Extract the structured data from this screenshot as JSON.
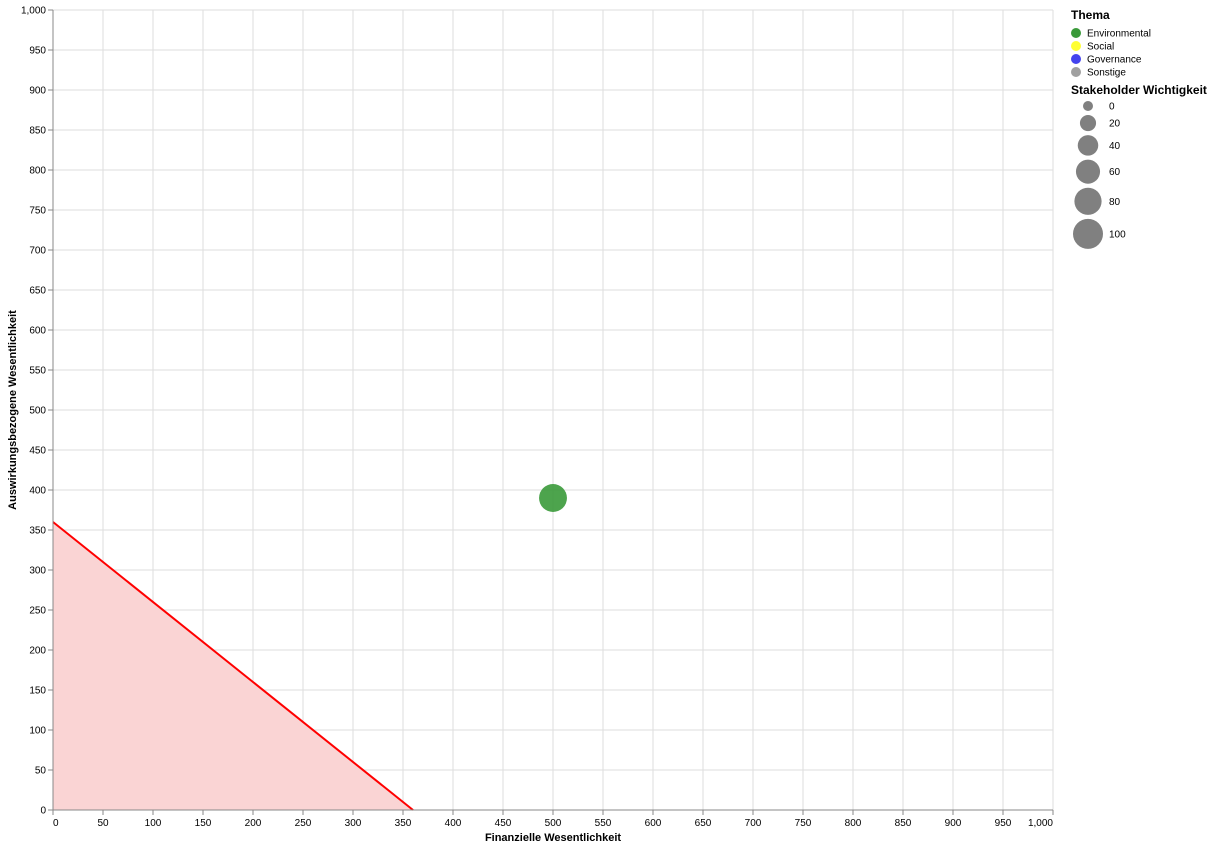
{
  "chart_data": {
    "type": "scatter",
    "xlabel": "Finanzielle Wesentlichkeit",
    "ylabel": "Auswirkungsbezogene Wesentlichkeit",
    "xlim": [
      0,
      1000
    ],
    "ylim": [
      0,
      1000
    ],
    "tick_step": 50,
    "x_tick_labels": [
      "0",
      "50",
      "100",
      "150",
      "200",
      "250",
      "300",
      "350",
      "400",
      "450",
      "500",
      "550",
      "600",
      "650",
      "700",
      "750",
      "800",
      "850",
      "900",
      "950",
      "1,000"
    ],
    "y_tick_labels": [
      "0",
      "50",
      "100",
      "150",
      "200",
      "250",
      "300",
      "350",
      "400",
      "450",
      "500",
      "550",
      "600",
      "650",
      "700",
      "750",
      "800",
      "850",
      "900",
      "950",
      "1,000"
    ],
    "grid": true,
    "threshold": {
      "color": "#ff0000",
      "fill": "#fad4d4",
      "points": [
        [
          0,
          360
        ],
        [
          360,
          0
        ]
      ]
    },
    "points": [
      {
        "x": 500,
        "y": 390,
        "theme": "Environmental",
        "size": 85
      }
    ],
    "legend": {
      "placement": "right",
      "color_title": "Thema",
      "color_items": [
        {
          "label": "Environmental",
          "color": "#3a9a3a"
        },
        {
          "label": "Social",
          "color": "#ffff33"
        },
        {
          "label": "Governance",
          "color": "#4444ee"
        },
        {
          "label": "Sonstige",
          "color": "#a0a0a0"
        }
      ],
      "size_title": "Stakeholder Wichtigkeit",
      "size_color": "#808080",
      "size_items": [
        {
          "label": "0",
          "value": 0
        },
        {
          "label": "20",
          "value": 20
        },
        {
          "label": "40",
          "value": 40
        },
        {
          "label": "60",
          "value": 60
        },
        {
          "label": "80",
          "value": 80
        },
        {
          "label": "100",
          "value": 100
        }
      ]
    }
  }
}
